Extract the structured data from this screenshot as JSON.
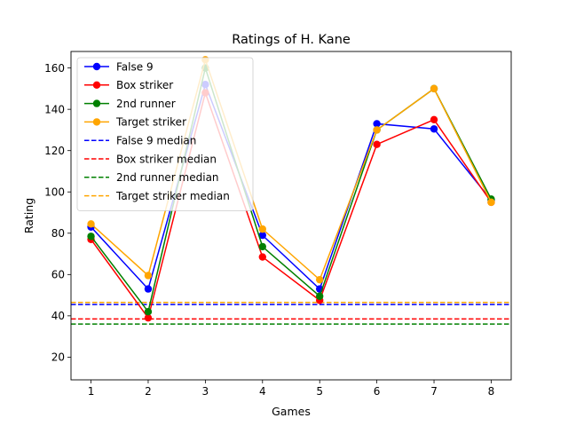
{
  "chart_data": {
    "type": "line",
    "title": "Ratings of H. Kane",
    "xlabel": "Games",
    "ylabel": "Rating",
    "x": [
      1,
      2,
      3,
      4,
      5,
      6,
      7,
      8
    ],
    "xlim": [
      0.65,
      8.35
    ],
    "ylim": [
      9,
      168
    ],
    "yticks": [
      20,
      40,
      60,
      80,
      100,
      120,
      140,
      160
    ],
    "grid": false,
    "legend_position": "top-left",
    "series": [
      {
        "name": "False 9",
        "color": "#0000ff",
        "values": [
          83,
          53,
          152,
          79,
          53,
          133,
          130.5,
          96
        ]
      },
      {
        "name": "Box striker",
        "color": "#ff0000",
        "values": [
          77,
          39,
          148,
          68.5,
          47.5,
          123,
          135,
          95
        ]
      },
      {
        "name": "2nd runner",
        "color": "#008000",
        "values": [
          78.5,
          42,
          160,
          73.5,
          49.5,
          130,
          150,
          96.5
        ]
      },
      {
        "name": "Target striker",
        "color": "#ffa500",
        "values": [
          84.5,
          59.5,
          164,
          82,
          57.5,
          130,
          150,
          95
        ]
      }
    ],
    "medians": [
      {
        "name": "False 9 median",
        "color": "#0000ff",
        "value": 45.5
      },
      {
        "name": "Box striker median",
        "color": "#ff0000",
        "value": 38.5
      },
      {
        "name": "2nd runner median",
        "color": "#008000",
        "value": 36
      },
      {
        "name": "Target striker median",
        "color": "#ffa500",
        "value": 46.5
      }
    ]
  }
}
